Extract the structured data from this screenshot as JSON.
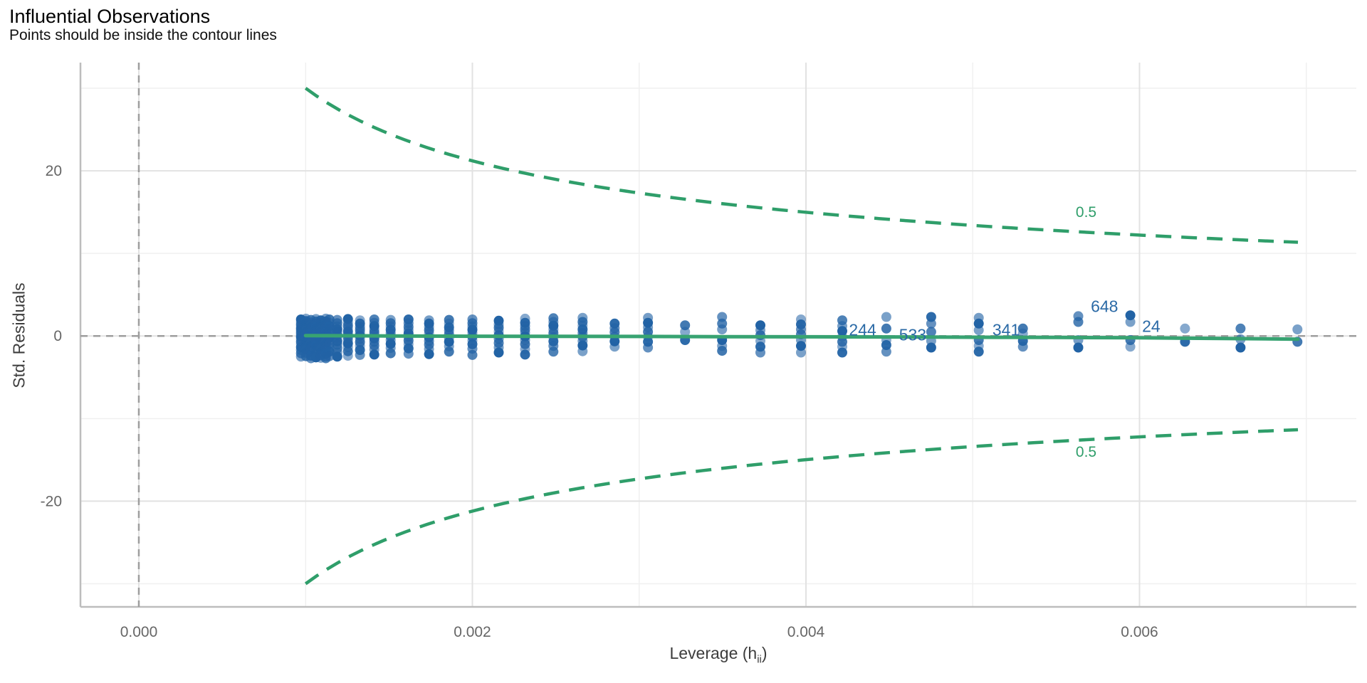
{
  "header": {
    "title": "Influential Observations",
    "subtitle": "Points should be inside the contour lines"
  },
  "axes": {
    "y": {
      "title": "Std. Residuals"
    },
    "x": {
      "title_prefix": "Leverage (h",
      "title_sub": "ii",
      "title_suffix": ")"
    }
  },
  "chart_data": {
    "type": "scatter",
    "title": "Influential Observations",
    "subtitle": "Points should be inside the contour lines",
    "xlabel": "Leverage (h_ii)",
    "ylabel": "Std. Residuals",
    "xlim": [
      -0.00035,
      0.0073
    ],
    "ylim": [
      -32.8,
      33.1
    ],
    "grid": true,
    "legend": "none",
    "x_ticks": {
      "values": [
        0.0,
        0.002,
        0.004,
        0.006
      ],
      "labels": [
        "0.000",
        "0.002",
        "0.004",
        "0.006"
      ],
      "minor": [
        0.001,
        0.003,
        0.005,
        0.007
      ]
    },
    "y_ticks": {
      "values": [
        -20,
        0,
        20
      ],
      "labels": [
        "-20",
        "0",
        "20"
      ],
      "minor": [
        -30,
        -10,
        10,
        30
      ]
    },
    "reference_lines": {
      "vertical_x": 0,
      "horizontal_y": 0
    },
    "contours": {
      "description": "Cook's distance contour, std.residual = ±sqrt(coef*(1-h)/h)",
      "level": 0.5,
      "coef": 0.901,
      "h_range": [
        0.001,
        0.00695
      ],
      "labels": [
        {
          "text": "0.5",
          "h": 0.00568,
          "y": 15.0
        },
        {
          "text": "0.5",
          "h": 0.00568,
          "y": -14.0
        }
      ]
    },
    "smooth_line": {
      "points": [
        [
          0.001,
          0.05
        ],
        [
          0.0015,
          0.0
        ],
        [
          0.002,
          -0.03
        ],
        [
          0.0025,
          -0.05
        ],
        [
          0.003,
          -0.06
        ],
        [
          0.0035,
          -0.08
        ],
        [
          0.004,
          -0.1
        ],
        [
          0.0045,
          -0.12
        ],
        [
          0.005,
          -0.15
        ],
        [
          0.0055,
          -0.18
        ],
        [
          0.006,
          -0.22
        ],
        [
          0.0065,
          -0.3
        ],
        [
          0.00695,
          -0.38
        ]
      ]
    },
    "scatter": {
      "columns": [
        {
          "h": 0.000972,
          "ys": [
            2.0,
            1.7,
            1.4,
            1.15,
            0.9,
            0.65,
            0.4,
            0.15,
            -0.1,
            -0.4,
            -0.7,
            -1.0,
            -1.35,
            -1.7,
            -2.1,
            -2.5
          ]
        },
        {
          "h": 0.001002,
          "ys": [
            2.1,
            1.8,
            1.5,
            1.2,
            0.95,
            0.7,
            0.45,
            0.2,
            -0.05,
            -0.35,
            -0.65,
            -0.95,
            -1.3,
            -1.65,
            -2.05,
            -2.45
          ]
        },
        {
          "h": 0.001032,
          "ys": [
            1.95,
            1.65,
            1.35,
            1.05,
            0.8,
            0.55,
            0.3,
            0.05,
            -0.25,
            -0.55,
            -0.85,
            -1.2,
            -1.55,
            -1.95,
            -2.4,
            -2.7
          ]
        },
        {
          "h": 0.001062,
          "ys": [
            2.05,
            1.75,
            1.45,
            1.15,
            0.85,
            0.6,
            0.35,
            0.1,
            -0.15,
            -0.45,
            -0.75,
            -1.1,
            -1.45,
            -1.8,
            -2.2,
            -2.6
          ]
        },
        {
          "h": 0.001091,
          "ys": [
            1.9,
            1.6,
            1.3,
            1.0,
            0.75,
            0.5,
            0.25,
            0.0,
            -0.3,
            -0.6,
            -0.9,
            -1.25,
            -1.6,
            -2.0,
            -2.35,
            -2.65
          ]
        },
        {
          "h": 0.001121,
          "ys": [
            2.1,
            1.75,
            1.4,
            1.1,
            0.8,
            0.5,
            0.2,
            -0.1,
            -0.4,
            -0.7,
            -1.05,
            -1.4,
            -1.75,
            -2.15,
            -2.5,
            -2.7
          ]
        },
        {
          "h": 0.001143,
          "ys": [
            2.0,
            1.6,
            1.2,
            0.85,
            0.5,
            0.15,
            -0.2,
            -0.55,
            -0.95,
            -1.4,
            -1.9,
            -2.45
          ]
        },
        {
          "h": 0.00119,
          "ys": [
            1.95,
            1.55,
            1.15,
            0.8,
            0.45,
            0.1,
            -0.25,
            -0.65,
            -1.05,
            -1.5,
            -2.0,
            -2.5
          ]
        },
        {
          "h": 0.001254,
          "ys": [
            2.05,
            1.65,
            1.25,
            0.9,
            0.55,
            0.2,
            -0.15,
            -0.5,
            -0.9,
            -1.35,
            -1.85,
            -2.4
          ]
        },
        {
          "h": 0.001326,
          "ys": [
            1.9,
            1.5,
            1.1,
            0.75,
            0.4,
            0.05,
            -0.35,
            -0.75,
            -1.2,
            -1.7,
            -2.3
          ]
        },
        {
          "h": 0.001412,
          "ys": [
            2.0,
            1.6,
            1.2,
            0.8,
            0.45,
            0.1,
            -0.3,
            -0.7,
            -1.15,
            -1.65,
            -2.25
          ]
        },
        {
          "h": 0.00151,
          "ys": [
            1.95,
            1.55,
            1.15,
            0.75,
            0.35,
            -0.05,
            -0.5,
            -0.95,
            -1.45,
            -2.1
          ]
        },
        {
          "h": 0.001617,
          "ys": [
            2.0,
            1.55,
            1.1,
            0.7,
            0.3,
            -0.1,
            -0.55,
            -1.0,
            -1.5,
            -2.15
          ]
        },
        {
          "h": 0.00174,
          "ys": [
            1.9,
            1.5,
            1.1,
            0.7,
            0.3,
            -0.15,
            -0.6,
            -1.05,
            -1.6,
            -2.2
          ]
        },
        {
          "h": 0.00186,
          "ys": [
            1.95,
            1.5,
            1.05,
            0.65,
            0.2,
            -0.25,
            -0.7,
            -1.25,
            -1.9
          ]
        },
        {
          "h": 0.002,
          "ys": [
            2.0,
            1.55,
            1.15,
            0.75,
            0.35,
            -0.1,
            -0.55,
            -1.0,
            -1.55,
            -2.3
          ]
        },
        {
          "h": 0.002158,
          "ys": [
            1.85,
            1.4,
            1.0,
            0.55,
            0.1,
            -0.35,
            -0.85,
            -1.4,
            -2.0
          ]
        },
        {
          "h": 0.002316,
          "ys": [
            2.1,
            1.6,
            1.2,
            0.8,
            0.4,
            -0.05,
            -0.5,
            -1.0,
            -1.6,
            -2.25
          ]
        },
        {
          "h": 0.002486,
          "ys": [
            2.15,
            1.7,
            1.25,
            0.8,
            0.35,
            -0.15,
            -0.65,
            -1.2,
            -1.9
          ]
        },
        {
          "h": 0.002661,
          "ys": [
            2.2,
            1.7,
            1.25,
            0.8,
            0.35,
            -0.1,
            -0.6,
            -1.15,
            -1.85
          ]
        },
        {
          "h": 0.002853,
          "ys": [
            1.5,
            0.95,
            0.45,
            -0.1,
            -0.65,
            -1.3
          ]
        },
        {
          "h": 0.003053,
          "ys": [
            2.2,
            1.6,
            1.05,
            0.5,
            -0.1,
            -0.7,
            -1.4
          ]
        },
        {
          "h": 0.003275,
          "ys": [
            1.3,
            0.5,
            -0.5
          ]
        },
        {
          "h": 0.003497,
          "ys": [
            2.3,
            1.5,
            0.8,
            -0.5,
            -1.2,
            -1.8
          ]
        },
        {
          "h": 0.003727,
          "ys": [
            1.3,
            0.7,
            0.1,
            -0.6,
            -1.3,
            -2.0
          ]
        },
        {
          "h": 0.00397,
          "ys": [
            2.0,
            1.4,
            0.8,
            0.2,
            -0.5,
            -1.2,
            -2.0
          ]
        },
        {
          "h": 0.004218,
          "ys": [
            1.9,
            1.2,
            0.6,
            -0.1,
            -0.7,
            -1.3,
            -2.0
          ]
        },
        {
          "h": 0.004482,
          "ys": [
            2.3,
            0.9,
            -0.5,
            -1.1,
            -1.9
          ]
        },
        {
          "h": 0.004751,
          "ys": [
            2.3,
            1.5,
            0.5,
            -0.6,
            -1.4
          ]
        },
        {
          "h": 0.005036,
          "ys": [
            2.2,
            1.5,
            0.7,
            -0.5,
            -1.2,
            -1.9
          ]
        },
        {
          "h": 0.005301,
          "ys": [
            0.9,
            0.3,
            -0.6,
            -1.3
          ]
        },
        {
          "h": 0.005633,
          "ys": [
            2.4,
            1.7,
            -0.5,
            -1.4
          ]
        },
        {
          "h": 0.005945,
          "ys": [
            2.5,
            1.7,
            -0.5,
            -1.3
          ]
        },
        {
          "h": 0.006273,
          "ys": [
            0.9,
            -0.7
          ]
        },
        {
          "h": 0.006606,
          "ys": [
            0.9,
            -0.4,
            -1.4
          ]
        },
        {
          "h": 0.006947,
          "ys": [
            0.8,
            -0.7
          ]
        }
      ]
    },
    "annotations": [
      {
        "text": "244",
        "h": 0.00434,
        "y": 0.75
      },
      {
        "text": "533",
        "h": 0.00464,
        "y": 0.15
      },
      {
        "text": "341",
        "h": 0.0052,
        "y": 0.75
      },
      {
        "text": "648",
        "h": 0.00579,
        "y": 3.6
      },
      {
        "text": "24",
        "h": 0.00607,
        "y": 1.2
      }
    ],
    "colors": {
      "point": "#2263a5",
      "smooth": "#38a372",
      "contour": "#2f9e6a",
      "annotation": "#2b6aa6",
      "grid_major": "#e2e2e2",
      "grid_minor": "#f0f0f0",
      "axis_line": "#bdbdbd",
      "ref_line": "#9e9e9e",
      "tick_text": "#666666",
      "axis_title_text": "#3d3d3d",
      "title_text": "#000000"
    }
  }
}
